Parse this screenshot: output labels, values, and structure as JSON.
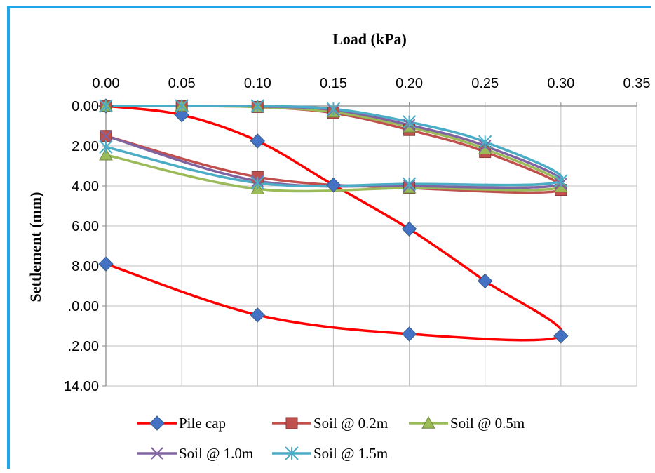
{
  "chart_data": {
    "type": "line",
    "xlabel": "Load (kPa)",
    "ylabel": "Settlement (mm)",
    "xlim": [
      0,
      0.35
    ],
    "ylim": [
      0,
      14
    ],
    "y_inverted": true,
    "x_axis_position": "top",
    "grid": true,
    "legend_position": "bottom",
    "x_tick_labels": [
      "0.00",
      "0.05",
      "0.10",
      "0.15",
      "0.20",
      "0.25",
      "0.30",
      "0.35"
    ],
    "y_tick_labels": [
      "0.00",
      "2.00",
      "4.00",
      "6.00",
      "8.00",
      ".0.00",
      ".2.00",
      "14.00"
    ],
    "series": [
      {
        "name": "Pile cap",
        "color": "#ff0000",
        "marker": "diamond",
        "marker_color": "#4472c4",
        "x": [
          0.0,
          0.05,
          0.1,
          0.15,
          0.2,
          0.25,
          0.3,
          0.2,
          0.1,
          0.0
        ],
        "y": [
          0.0,
          0.45,
          1.75,
          3.95,
          6.15,
          8.75,
          11.5,
          11.4,
          10.45,
          7.9
        ]
      },
      {
        "name": "Soil @ 0.2m",
        "color": "#c0504d",
        "marker": "square",
        "marker_color": "#c0504d",
        "x": [
          0.0,
          0.05,
          0.1,
          0.15,
          0.2,
          0.25,
          0.3,
          0.2,
          0.1,
          0.0
        ],
        "y": [
          0.0,
          0.0,
          0.05,
          0.35,
          1.2,
          2.3,
          4.2,
          4.1,
          3.55,
          1.5
        ]
      },
      {
        "name": "Soil @ 0.5m",
        "color": "#9bbb59",
        "marker": "triangle",
        "marker_color": "#9bbb59",
        "x": [
          0.0,
          0.05,
          0.1,
          0.15,
          0.2,
          0.25,
          0.3,
          0.2,
          0.1,
          0.0
        ],
        "y": [
          0.0,
          0.0,
          0.05,
          0.3,
          1.05,
          2.15,
          4.05,
          4.1,
          4.15,
          2.45
        ]
      },
      {
        "name": "Soil @ 1.0m",
        "color": "#8064a2",
        "marker": "x",
        "marker_color": "#8064a2",
        "x": [
          0.0,
          0.05,
          0.1,
          0.15,
          0.2,
          0.25,
          0.3,
          0.2,
          0.1,
          0.0
        ],
        "y": [
          0.0,
          0.0,
          0.02,
          0.2,
          0.95,
          2.0,
          3.9,
          4.0,
          3.75,
          1.5
        ]
      },
      {
        "name": "Soil @ 1.5m",
        "color": "#4bacc6",
        "marker": "asterisk",
        "marker_color": "#4bacc6",
        "x": [
          0.0,
          0.05,
          0.1,
          0.15,
          0.2,
          0.25,
          0.3,
          0.2,
          0.1,
          0.0
        ],
        "y": [
          0.0,
          0.0,
          0.0,
          0.15,
          0.8,
          1.8,
          3.75,
          3.9,
          3.85,
          2.05
        ]
      }
    ]
  }
}
